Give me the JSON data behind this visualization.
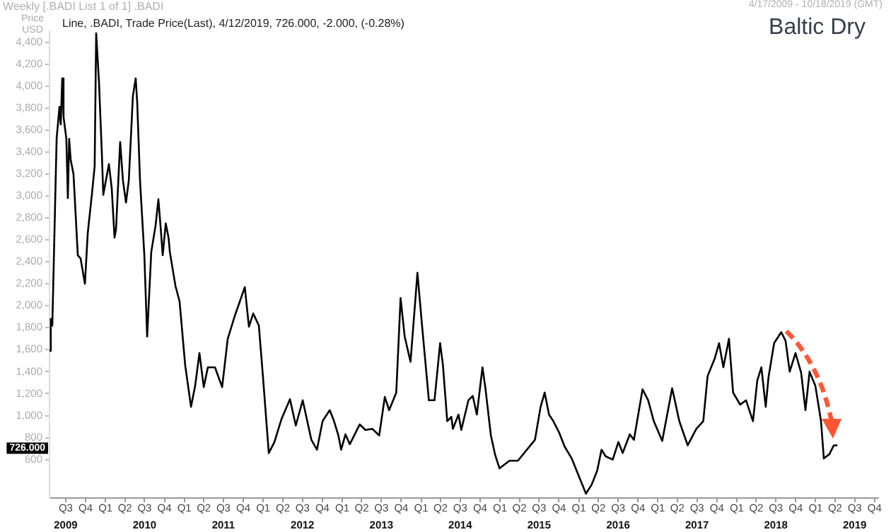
{
  "chart_data": {
    "type": "line",
    "title": "Baltic Dry",
    "subtitle": "Line, .BADI, Trade Price(Last), 4/12/2019, 726.000, -2.000, (-0.28%)",
    "ylabel": "Price USD",
    "annotations": [
      "Weekly [.BADI List 1 of 1] .BADI",
      "4/17/2009 - 10/18/2019 (GMT)",
      "726.000"
    ],
    "x": [
      "2009-04-17",
      "2009-04-23",
      "2009-04-30",
      "2009-05-20",
      "2009-06-02",
      "2009-06-08",
      "2009-06-15",
      "2009-06-21",
      "2009-07-04",
      "2009-07-11",
      "2009-07-17",
      "2009-07-24",
      "2009-08-06",
      "2009-08-26",
      "2009-09-08",
      "2009-09-28",
      "2009-10-11",
      "2009-10-30",
      "2009-11-12",
      "2009-11-19",
      "2009-12-02",
      "2009-12-15",
      "2009-12-22",
      "2010-01-17",
      "2010-01-30",
      "2010-02-12",
      "2010-02-19",
      "2010-03-10",
      "2010-03-23",
      "2010-04-06",
      "2010-04-19",
      "2010-05-08",
      "2010-05-21",
      "2010-05-28",
      "2010-06-10",
      "2010-06-30",
      "2010-07-13",
      "2010-08-01",
      "2010-08-21",
      "2010-09-03",
      "2010-09-16",
      "2010-09-23",
      "2010-10-07",
      "2010-10-20",
      "2010-10-26",
      "2010-11-21",
      "2010-12-10",
      "2011-01-05",
      "2011-02-01",
      "2011-02-20",
      "2011-03-12",
      "2011-04-01",
      "2011-04-20",
      "2011-05-23",
      "2011-06-25",
      "2011-07-21",
      "2011-08-23",
      "2011-10-08",
      "2011-10-27",
      "2011-11-16",
      "2011-12-12",
      "2012-01-01",
      "2012-01-27",
      "2012-02-22",
      "2012-03-26",
      "2012-05-04",
      "2012-05-31",
      "2012-07-02",
      "2012-08-11",
      "2012-09-06",
      "2012-10-02",
      "2012-11-04",
      "2012-11-24",
      "2012-12-14",
      "2012-12-27",
      "2013-01-16",
      "2013-02-05",
      "2013-03-23",
      "2013-04-18",
      "2013-05-20",
      "2013-06-21",
      "2013-07-17",
      "2013-08-06",
      "2013-09-08",
      "2013-09-28",
      "2013-10-17",
      "2013-11-13",
      "2013-12-15",
      "2014-01-04",
      "2014-02-06",
      "2014-03-04",
      "2014-03-30",
      "2014-04-12",
      "2014-05-02",
      "2014-05-21",
      "2014-05-28",
      "2014-06-23",
      "2014-07-06",
      "2014-08-08",
      "2014-08-28",
      "2014-09-16",
      "2014-10-12",
      "2014-10-25",
      "2014-11-20",
      "2014-12-10",
      "2014-12-30",
      "2015-02-14",
      "2015-03-25",
      "2015-06-12",
      "2015-07-08",
      "2015-07-27",
      "2015-08-16",
      "2015-09-05",
      "2015-10-01",
      "2015-10-27",
      "2015-11-29",
      "2016-01-01",
      "2016-02-03",
      "2016-02-29",
      "2016-03-26",
      "2016-04-15",
      "2016-05-04",
      "2016-06-06",
      "2016-07-02",
      "2016-07-22",
      "2016-08-24",
      "2016-09-12",
      "2016-10-22",
      "2016-11-17",
      "2016-12-13",
      "2017-01-21",
      "2017-03-08",
      "2017-04-10",
      "2017-05-19",
      "2017-06-28",
      "2017-07-30",
      "2017-08-19",
      "2017-09-21",
      "2017-10-11",
      "2017-10-31",
      "2017-11-26",
      "2017-12-15",
      "2018-01-17",
      "2018-02-13",
      "2018-03-17",
      "2018-04-06",
      "2018-04-25",
      "2018-05-15",
      "2018-05-28",
      "2018-06-23",
      "2018-07-26",
      "2018-08-15",
      "2018-09-03",
      "2018-09-30",
      "2018-10-26",
      "2018-11-15",
      "2018-12-04",
      "2018-12-31",
      "2019-01-26",
      "2019-02-08",
      "2019-03-06",
      "2019-03-26",
      "2019-04-12"
    ],
    "series": [
      {
        "color": "#000000",
        "values": [
          1590,
          1880,
          1820,
          3520,
          3810,
          3650,
          4070,
          3720,
          3520,
          2980,
          3520,
          3330,
          3200,
          2460,
          2430,
          2200,
          2660,
          3010,
          3270,
          4480,
          4040,
          3400,
          3010,
          3290,
          3070,
          2620,
          2700,
          3490,
          3140,
          2940,
          3140,
          3910,
          4070,
          3850,
          3140,
          2460,
          1720,
          2490,
          2730,
          2970,
          2650,
          2460,
          2750,
          2620,
          2490,
          2180,
          2040,
          1460,
          1080,
          1270,
          1570,
          1260,
          1440,
          1440,
          1260,
          1700,
          1910,
          2170,
          1810,
          1930,
          1820,
          1330,
          660,
          760,
          970,
          1150,
          910,
          1140,
          780,
          690,
          950,
          1050,
          950,
          820,
          690,
          830,
          740,
          920,
          870,
          880,
          820,
          1170,
          1050,
          1210,
          2070,
          1720,
          1490,
          2300,
          1850,
          1140,
          1140,
          1660,
          1460,
          950,
          990,
          880,
          1010,
          870,
          1140,
          1180,
          1010,
          1440,
          1260,
          820,
          640,
          520,
          590,
          590,
          780,
          1080,
          1210,
          1010,
          950,
          850,
          720,
          610,
          450,
          290,
          370,
          500,
          690,
          630,
          600,
          760,
          660,
          830,
          780,
          1240,
          1140,
          950,
          770,
          1250,
          950,
          730,
          880,
          950,
          1360,
          1520,
          1660,
          1440,
          1700,
          1210,
          1100,
          1140,
          950,
          1320,
          1440,
          1080,
          1350,
          1660,
          1760,
          1680,
          1400,
          1570,
          1390,
          1050,
          1400,
          1270,
          950,
          610,
          650,
          730,
          730
        ]
      }
    ],
    "xlim": [
      "2009-04-17",
      "2019-10-18"
    ],
    "xticks": [
      {
        "value": "2009-07-01",
        "label": "Q3"
      },
      {
        "value": "2009-10-01",
        "label": "Q4"
      },
      {
        "value": "2010-01-01",
        "label": "Q1"
      },
      {
        "value": "2010-04-01",
        "label": "Q2"
      },
      {
        "value": "2010-07-01",
        "label": "Q3"
      },
      {
        "value": "2010-10-01",
        "label": "Q4"
      },
      {
        "value": "2011-01-01",
        "label": "Q1"
      },
      {
        "value": "2011-04-01",
        "label": "Q2"
      },
      {
        "value": "2011-07-01",
        "label": "Q3"
      },
      {
        "value": "2011-10-01",
        "label": "Q4"
      },
      {
        "value": "2012-01-01",
        "label": "Q1"
      },
      {
        "value": "2012-04-01",
        "label": "Q2"
      },
      {
        "value": "2012-07-01",
        "label": "Q3"
      },
      {
        "value": "2012-10-01",
        "label": "Q4"
      },
      {
        "value": "2013-01-01",
        "label": "Q1"
      },
      {
        "value": "2013-04-01",
        "label": "Q2"
      },
      {
        "value": "2013-07-01",
        "label": "Q3"
      },
      {
        "value": "2013-10-01",
        "label": "Q4"
      },
      {
        "value": "2014-01-01",
        "label": "Q1"
      },
      {
        "value": "2014-04-01",
        "label": "Q2"
      },
      {
        "value": "2014-07-01",
        "label": "Q3"
      },
      {
        "value": "2014-10-01",
        "label": "Q4"
      },
      {
        "value": "2015-01-01",
        "label": "Q1"
      },
      {
        "value": "2015-04-01",
        "label": "Q2"
      },
      {
        "value": "2015-07-01",
        "label": "Q3"
      },
      {
        "value": "2015-10-01",
        "label": "Q4"
      },
      {
        "value": "2016-01-01",
        "label": "Q1"
      },
      {
        "value": "2016-04-01",
        "label": "Q2"
      },
      {
        "value": "2016-07-01",
        "label": "Q3"
      },
      {
        "value": "2016-10-01",
        "label": "Q4"
      },
      {
        "value": "2017-01-01",
        "label": "Q1"
      },
      {
        "value": "2017-04-01",
        "label": "Q2"
      },
      {
        "value": "2017-07-01",
        "label": "Q3"
      },
      {
        "value": "2017-10-01",
        "label": "Q4"
      },
      {
        "value": "2018-01-01",
        "label": "Q1"
      },
      {
        "value": "2018-04-01",
        "label": "Q2"
      },
      {
        "value": "2018-07-01",
        "label": "Q3"
      },
      {
        "value": "2018-10-01",
        "label": "Q4"
      },
      {
        "value": "2019-01-01",
        "label": "Q1"
      },
      {
        "value": "2019-04-01",
        "label": "Q2"
      },
      {
        "value": "2019-07-01",
        "label": "Q3"
      },
      {
        "value": "2019-10-01",
        "label": "Q4"
      }
    ],
    "x2lim": [
      "2009-04-17",
      "2019-10-18"
    ],
    "x2ticks": [
      {
        "value": "2009-07-01",
        "label": "2009"
      },
      {
        "value": "2010-07-01",
        "label": "2010"
      },
      {
        "value": "2011-07-01",
        "label": "2011"
      },
      {
        "value": "2012-07-01",
        "label": "2012"
      },
      {
        "value": "2013-07-01",
        "label": "2013"
      },
      {
        "value": "2014-07-01",
        "label": "2014"
      },
      {
        "value": "2015-07-01",
        "label": "2015"
      },
      {
        "value": "2016-07-01",
        "label": "2016"
      },
      {
        "value": "2017-07-01",
        "label": "2017"
      },
      {
        "value": "2018-07-01",
        "label": "2018"
      },
      {
        "value": "2019-07-01",
        "label": "2019"
      }
    ],
    "ylim": [
      250,
      4500
    ],
    "yticks": [
      600,
      800,
      {
        "value": 1000,
        "label": "1,000"
      },
      {
        "value": 1200,
        "label": "1,200"
      },
      {
        "value": 1400,
        "label": "1,400"
      },
      {
        "value": 1600,
        "label": "1,600"
      },
      {
        "value": 1800,
        "label": "1,800"
      },
      {
        "value": 2000,
        "label": "2,000"
      },
      {
        "value": 2200,
        "label": "2,200"
      },
      {
        "value": 2400,
        "label": "2,400"
      },
      {
        "value": 2600,
        "label": "2,600"
      },
      {
        "value": 2800,
        "label": "2,800"
      },
      {
        "value": 3000,
        "label": "3,000"
      },
      {
        "value": 3200,
        "label": "3,200"
      },
      {
        "value": 3400,
        "label": "3,400"
      },
      {
        "value": 3600,
        "label": "3,600"
      },
      {
        "value": 3800,
        "label": "3,800"
      },
      {
        "value": 4000,
        "label": "4,000"
      },
      {
        "value": 4200,
        "label": "4,200"
      },
      {
        "value": 4400,
        "label": "4,400"
      }
    ],
    "grid": false,
    "legend": false,
    "marker": "none",
    "line_style": "solid"
  }
}
